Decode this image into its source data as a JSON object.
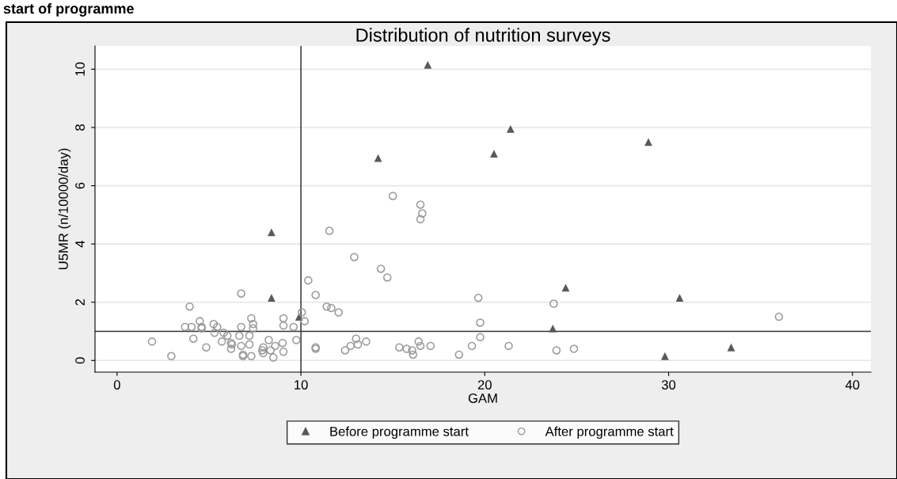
{
  "chart_data": {
    "type": "scatter",
    "title": "Distribution of nutrition surveys",
    "xlabel": "GAM",
    "ylabel": "U5MR (n/10000/day)",
    "annotations": [
      "start of programme"
    ],
    "xlim": [
      -1.2,
      41
    ],
    "ylim": [
      -0.4,
      10.8
    ],
    "xticks": [
      0,
      10,
      20,
      30,
      40
    ],
    "yticks": [
      0,
      2,
      4,
      6,
      8,
      10
    ],
    "grid": "y",
    "legend": "bottom",
    "ref_lines": [
      {
        "axis": "x",
        "value": 10,
        "color": "#333333"
      },
      {
        "axis": "y",
        "value": 1,
        "color": "#333333"
      }
    ],
    "series": [
      {
        "name": "Before programme start",
        "color": "#595959",
        "marker": "triangle",
        "x": [
          8.4,
          8.4,
          9.9,
          16.9,
          14.2,
          20.5,
          21.4,
          24.4,
          23.7,
          28.9,
          30.6,
          29.8,
          33.4
        ],
        "values": [
          4.4,
          2.15,
          1.5,
          10.15,
          6.95,
          7.1,
          7.95,
          2.5,
          1.1,
          7.5,
          2.15,
          0.15,
          0.45
        ]
      },
      {
        "name": "After programme start",
        "color": "#999999",
        "marker": "circle",
        "x": [
          11.55,
          10.4,
          10.8,
          6.75,
          3.95,
          11.4,
          11.65,
          12.05,
          10.05,
          10.2,
          7.3,
          9.05,
          9.05,
          9.6,
          7.4,
          7.4,
          6.75,
          4.5,
          3.7,
          4.05,
          4.6,
          4.6,
          5.25,
          5.45,
          5.3,
          5.8,
          6.0,
          6.65,
          7.2,
          1.9,
          4.15,
          4.85,
          5.7,
          6.2,
          6.25,
          6.2,
          6.75,
          7.2,
          8.25,
          9.0,
          8.6,
          7.95,
          7.9,
          8.35,
          7.95,
          9.05,
          8.5,
          9.75,
          2.95,
          6.85,
          6.85,
          7.3,
          10.8,
          10.8,
          12.4,
          15.0,
          16.5,
          16.6,
          16.5,
          12.9,
          14.35,
          14.7,
          19.65,
          23.75,
          19.75,
          19.75,
          13.0,
          13.55,
          13.1,
          12.7,
          15.35,
          15.75,
          16.05,
          16.1,
          16.4,
          16.5,
          17.05,
          18.6,
          19.3,
          21.3,
          23.9,
          24.85,
          36.0
        ],
        "values": [
          4.45,
          2.75,
          2.25,
          2.3,
          1.85,
          1.85,
          1.8,
          1.65,
          1.65,
          1.35,
          1.45,
          1.45,
          1.2,
          1.15,
          1.25,
          1.1,
          1.15,
          1.35,
          1.15,
          1.15,
          1.15,
          1.1,
          1.25,
          1.15,
          0.95,
          0.95,
          0.85,
          0.85,
          0.85,
          0.65,
          0.75,
          0.45,
          0.65,
          0.6,
          0.55,
          0.4,
          0.5,
          0.55,
          0.7,
          0.6,
          0.5,
          0.45,
          0.35,
          0.35,
          0.25,
          0.3,
          0.1,
          0.7,
          0.15,
          0.2,
          0.15,
          0.15,
          0.45,
          0.4,
          0.35,
          5.65,
          5.35,
          5.05,
          4.85,
          3.55,
          3.15,
          2.85,
          2.15,
          1.95,
          1.3,
          0.8,
          0.75,
          0.65,
          0.55,
          0.5,
          0.45,
          0.4,
          0.35,
          0.2,
          0.65,
          0.5,
          0.5,
          0.2,
          0.5,
          0.5,
          0.35,
          0.4,
          1.5
        ]
      }
    ]
  }
}
